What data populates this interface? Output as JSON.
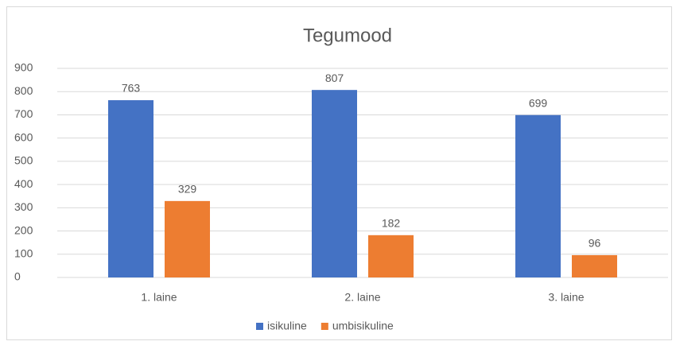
{
  "chart_data": {
    "type": "bar",
    "title": "Tegumood",
    "categories": [
      "1. laine",
      "2. laine",
      "3. laine"
    ],
    "series": [
      {
        "name": "isikuline",
        "color": "#4472c4",
        "values": [
          763,
          807,
          699
        ]
      },
      {
        "name": "umbisikuline",
        "color": "#ed7d31",
        "values": [
          329,
          182,
          96
        ]
      }
    ],
    "ylim": [
      0,
      900
    ],
    "yticks": [
      0,
      100,
      200,
      300,
      400,
      500,
      600,
      700,
      800,
      900
    ],
    "grid": true,
    "legend": "bottom",
    "data_labels": true
  }
}
